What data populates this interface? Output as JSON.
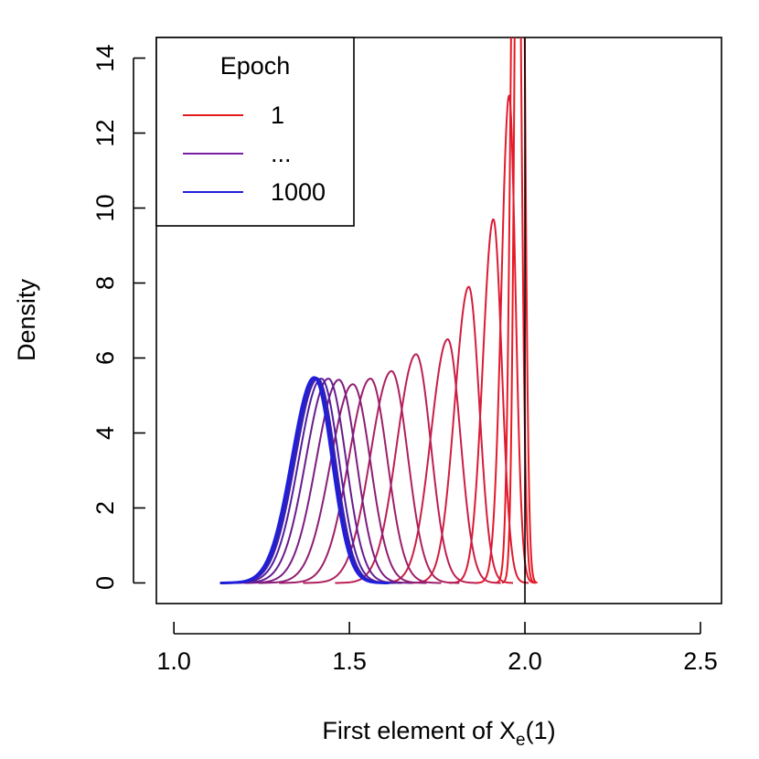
{
  "chart_data": {
    "type": "line",
    "title": "",
    "xlabel": "First element of ",
    "xlabel_symbol": "X",
    "xlabel_sub": "e",
    "xlabel_tail": "(1)",
    "ylabel": "Density",
    "xlim": [
      0.95,
      2.56
    ],
    "ylim": [
      -0.55,
      14.55
    ],
    "x_ticks": [
      1.0,
      1.5,
      2.0,
      2.5
    ],
    "x_tick_labels": [
      "1.0",
      "1.5",
      "2.0",
      "2.5"
    ],
    "y_ticks": [
      0,
      2,
      4,
      6,
      8,
      10,
      12,
      14
    ],
    "y_tick_labels": [
      "0",
      "2",
      "4",
      "6",
      "8",
      "10",
      "12",
      "14"
    ],
    "grid": false,
    "vline_x": 2.0,
    "legend": {
      "title": "Epoch",
      "placement": "top-left",
      "entries": [
        {
          "label": "1",
          "color": "#e31a1c"
        },
        {
          "label": "...",
          "color": "#7b1fa2"
        },
        {
          "label": "1000",
          "color": "#1f1fdb"
        }
      ]
    },
    "series_peaks": [
      {
        "peak_x": 1.985,
        "peak_y": 30.0,
        "sigma_left": 0.012,
        "sigma_right": 0.012,
        "color": "#e81923",
        "width": 2.0
      },
      {
        "peak_x": 1.975,
        "peak_y": 25.0,
        "sigma_left": 0.014,
        "sigma_right": 0.013,
        "color": "#e61926",
        "width": 2.0
      },
      {
        "peak_x": 1.955,
        "peak_y": 13.0,
        "sigma_left": 0.022,
        "sigma_right": 0.018,
        "color": "#e11b2c",
        "width": 2.0
      },
      {
        "peak_x": 1.91,
        "peak_y": 9.7,
        "sigma_left": 0.03,
        "sigma_right": 0.024,
        "color": "#da1c34",
        "width": 2.0
      },
      {
        "peak_x": 1.84,
        "peak_y": 7.9,
        "sigma_left": 0.04,
        "sigma_right": 0.03,
        "color": "#d21e3e",
        "width": 2.0
      },
      {
        "peak_x": 1.78,
        "peak_y": 6.5,
        "sigma_left": 0.048,
        "sigma_right": 0.036,
        "color": "#c81f48",
        "width": 2.0
      },
      {
        "peak_x": 1.69,
        "peak_y": 6.1,
        "sigma_left": 0.055,
        "sigma_right": 0.042,
        "color": "#bc2053",
        "width": 2.0
      },
      {
        "peak_x": 1.62,
        "peak_y": 5.65,
        "sigma_left": 0.06,
        "sigma_right": 0.046,
        "color": "#ae205e",
        "width": 2.0
      },
      {
        "peak_x": 1.56,
        "peak_y": 5.45,
        "sigma_left": 0.062,
        "sigma_right": 0.048,
        "color": "#9e1f6a",
        "width": 2.0
      },
      {
        "peak_x": 1.51,
        "peak_y": 5.3,
        "sigma_left": 0.064,
        "sigma_right": 0.05,
        "color": "#8d1e75",
        "width": 2.0
      },
      {
        "peak_x": 1.47,
        "peak_y": 5.42,
        "sigma_left": 0.064,
        "sigma_right": 0.05,
        "color": "#7b1d81",
        "width": 2.0
      },
      {
        "peak_x": 1.44,
        "peak_y": 5.45,
        "sigma_left": 0.064,
        "sigma_right": 0.05,
        "color": "#671d8e",
        "width": 2.0
      },
      {
        "peak_x": 1.42,
        "peak_y": 5.45,
        "sigma_left": 0.064,
        "sigma_right": 0.05,
        "color": "#531e9d",
        "width": 2.0
      },
      {
        "peak_x": 1.41,
        "peak_y": 5.45,
        "sigma_left": 0.064,
        "sigma_right": 0.05,
        "color": "#3e1fad",
        "width": 2.0
      },
      {
        "peak_x": 1.405,
        "peak_y": 5.47,
        "sigma_left": 0.064,
        "sigma_right": 0.05,
        "color": "#2b1fbf",
        "width": 2.5
      },
      {
        "peak_x": 1.4,
        "peak_y": 5.48,
        "sigma_left": 0.064,
        "sigma_right": 0.05,
        "color": "#1f1fdb",
        "width": 3.0
      }
    ]
  }
}
